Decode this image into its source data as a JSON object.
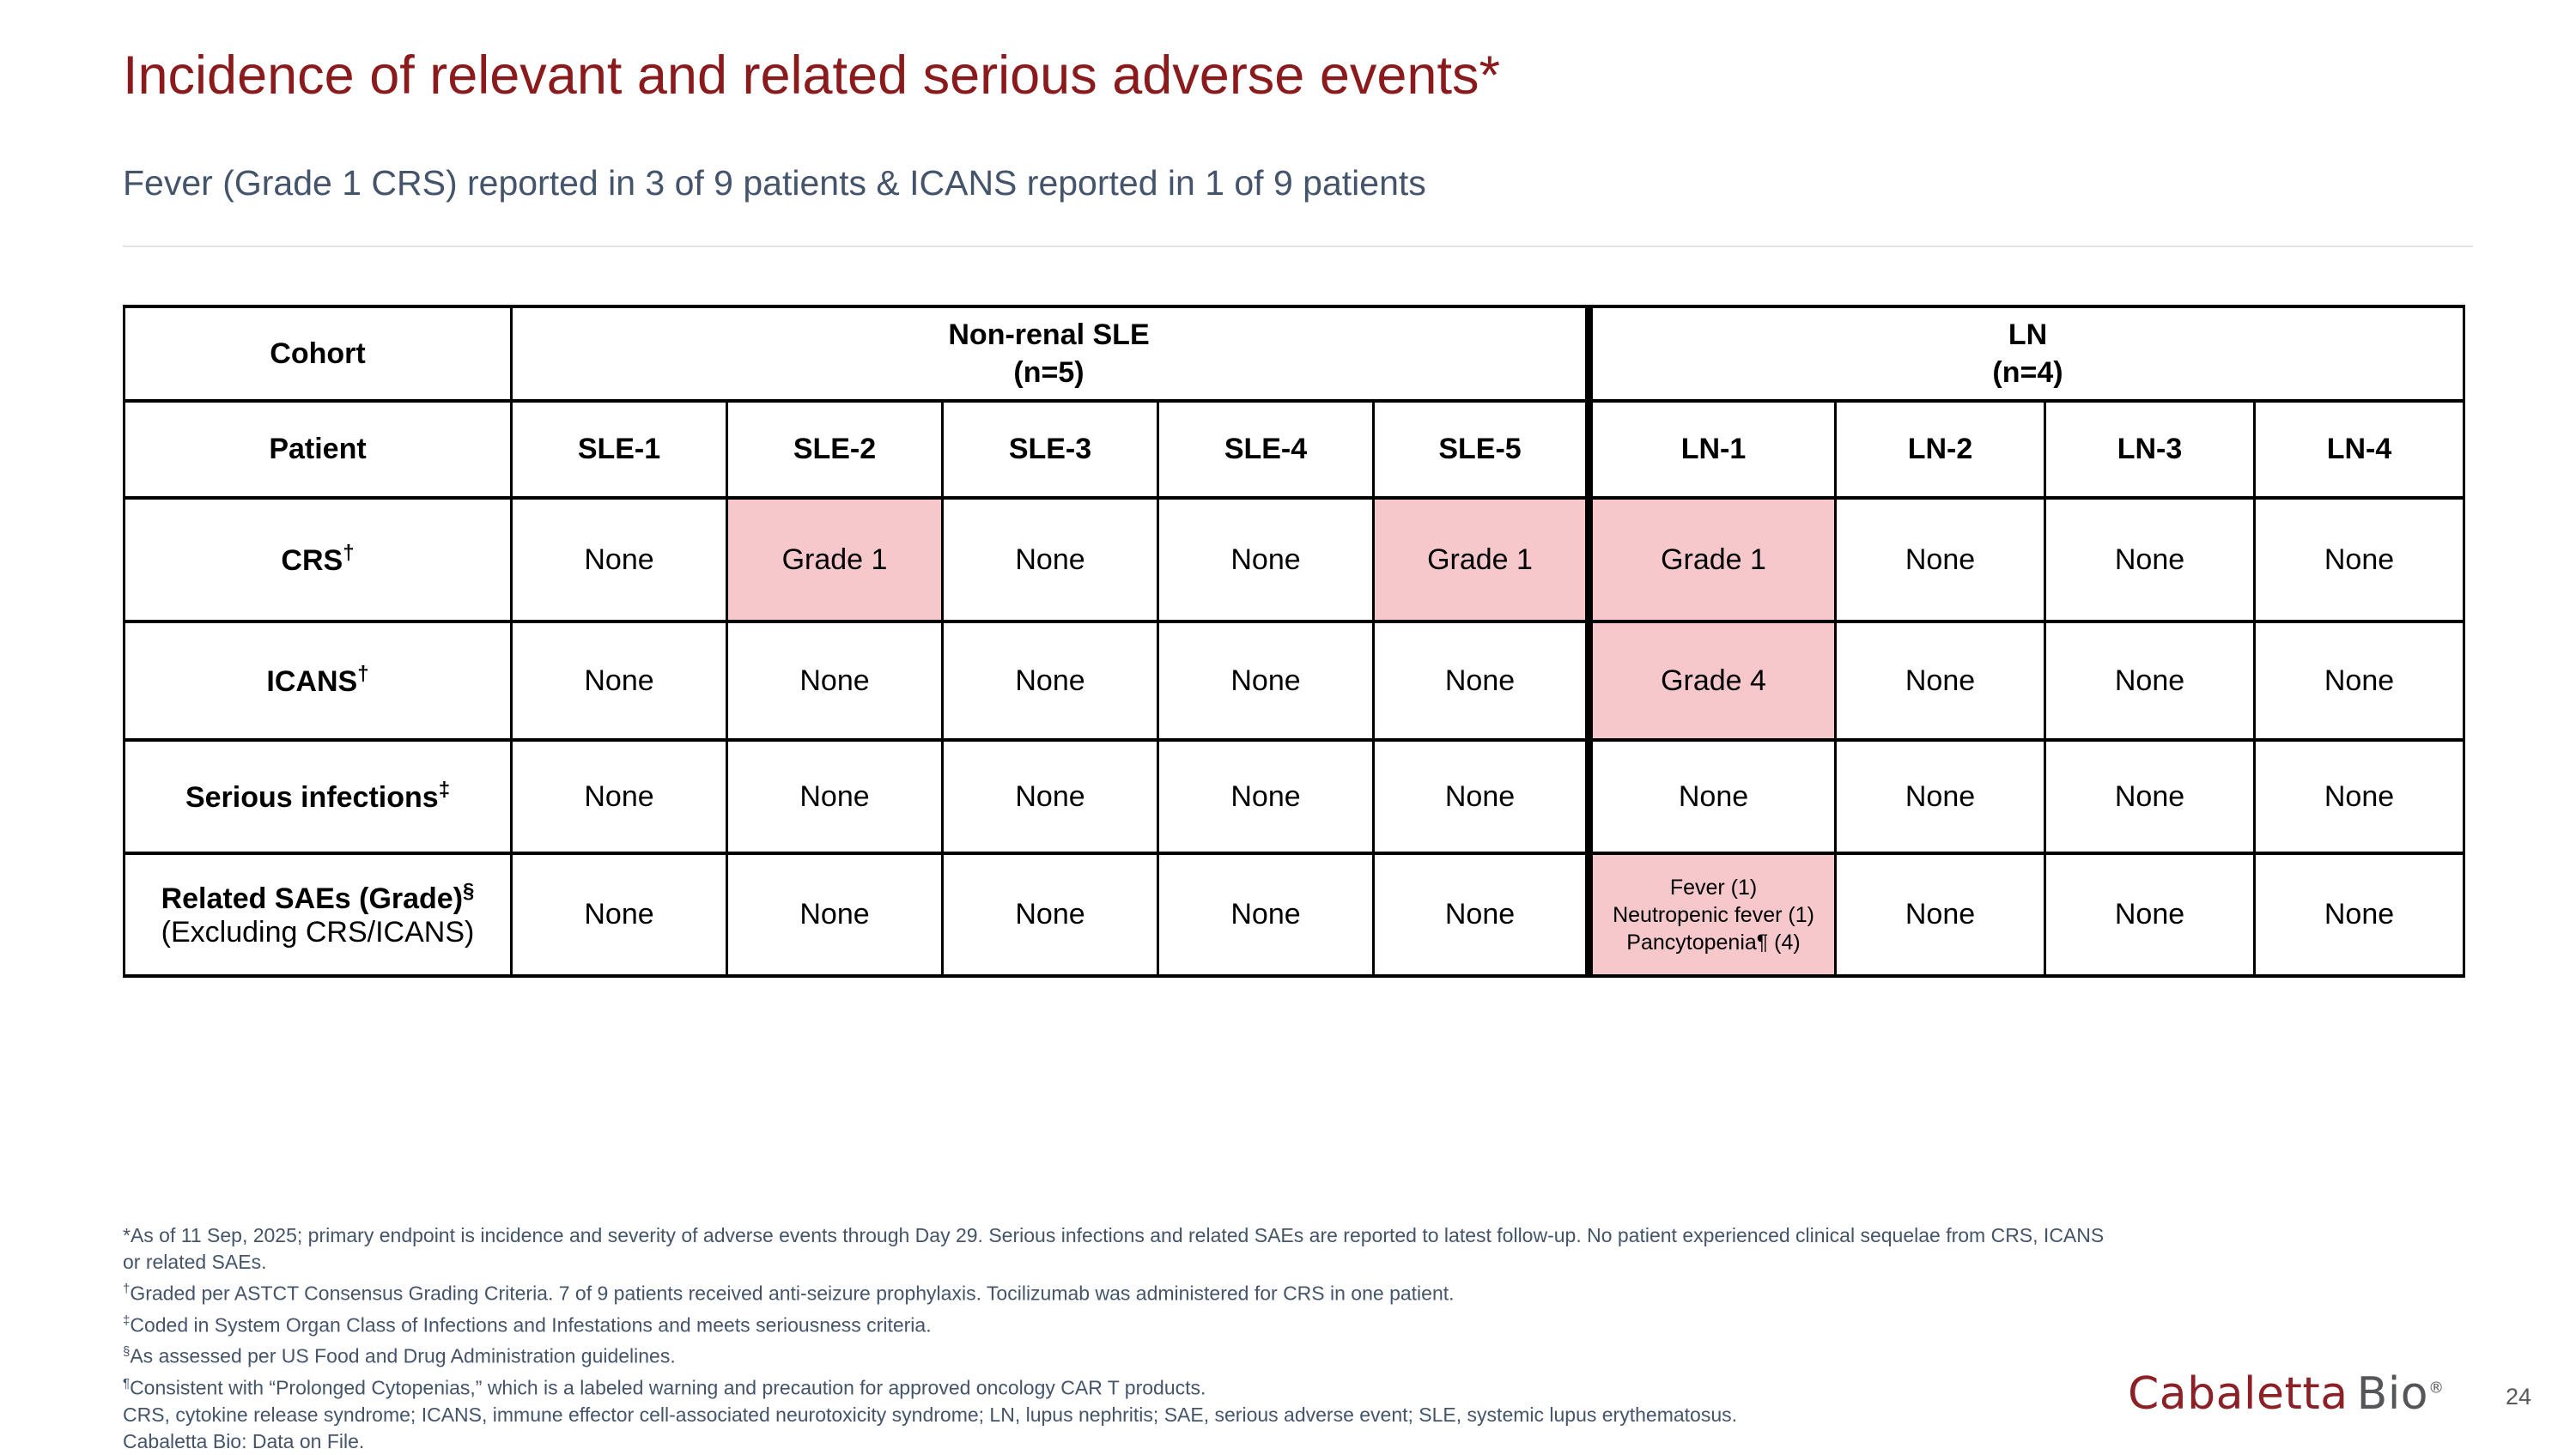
{
  "slide": {
    "title": "Incidence of relevant and related serious adverse events*",
    "subtitle": "Fever (Grade 1 CRS) reported in 3 of 9 patients & ICANS reported in 1 of 9 patients",
    "page_number": "24",
    "logo": {
      "part1": "Cabaletta",
      "part2": "Bio",
      "reg_mark": "®"
    }
  },
  "colors": {
    "title_color": "#8B1A1C",
    "subtitle_color": "#44546A",
    "sle_header_bg": "#7D1416",
    "ln_header_bg": "#E26B6E",
    "sle_text": "#8B1A1C",
    "ln_text": "#E26B6E",
    "highlight_bg": "#F6C7CB",
    "footnote_color": "#44546A",
    "logo_maroon": "#8B2026",
    "logo_gray": "#55565A",
    "page_number_color": "#595959"
  },
  "table": {
    "corner_label": "Cohort",
    "patient_row_label": "Patient",
    "groups": [
      {
        "name": "Non-renal SLE",
        "n_label": "(n=5)",
        "span": 5,
        "cohort": "sle"
      },
      {
        "name": "LN",
        "n_label": "(n=4)",
        "span": 4,
        "cohort": "ln"
      }
    ],
    "patients": [
      {
        "id": "SLE-1",
        "cohort": "sle"
      },
      {
        "id": "SLE-2",
        "cohort": "sle"
      },
      {
        "id": "SLE-3",
        "cohort": "sle"
      },
      {
        "id": "SLE-4",
        "cohort": "sle"
      },
      {
        "id": "SLE-5",
        "cohort": "sle"
      },
      {
        "id": "LN-1",
        "cohort": "ln"
      },
      {
        "id": "LN-2",
        "cohort": "ln"
      },
      {
        "id": "LN-3",
        "cohort": "ln"
      },
      {
        "id": "LN-4",
        "cohort": "ln"
      }
    ],
    "rows": [
      {
        "label": "CRS",
        "marker": "†",
        "sublabel": "",
        "cells": [
          {
            "text": "None"
          },
          {
            "text": "Grade 1",
            "highlight": true
          },
          {
            "text": "None"
          },
          {
            "text": "None"
          },
          {
            "text": "Grade 1",
            "highlight": true
          },
          {
            "text": "Grade 1",
            "highlight": true
          },
          {
            "text": "None"
          },
          {
            "text": "None"
          },
          {
            "text": "None"
          }
        ]
      },
      {
        "label": "ICANS",
        "marker": "†",
        "sublabel": "",
        "cells": [
          {
            "text": "None"
          },
          {
            "text": "None"
          },
          {
            "text": "None"
          },
          {
            "text": "None"
          },
          {
            "text": "None"
          },
          {
            "text": "Grade 4",
            "highlight": true
          },
          {
            "text": "None"
          },
          {
            "text": "None"
          },
          {
            "text": "None"
          }
        ]
      },
      {
        "label": "Serious infections",
        "marker": "‡",
        "sublabel": "",
        "cells": [
          {
            "text": "None"
          },
          {
            "text": "None"
          },
          {
            "text": "None"
          },
          {
            "text": "None"
          },
          {
            "text": "None"
          },
          {
            "text": "None"
          },
          {
            "text": "None"
          },
          {
            "text": "None"
          },
          {
            "text": "None"
          }
        ]
      },
      {
        "label": "Related SAEs (Grade)",
        "marker": "§",
        "sublabel": "(Excluding CRS/ICANS)",
        "cells": [
          {
            "text": "None"
          },
          {
            "text": "None"
          },
          {
            "text": "None"
          },
          {
            "text": "None"
          },
          {
            "text": "None"
          },
          {
            "lines": [
              "Fever (1)",
              "Neutropenic fever (1)",
              "Pancytopenia¶ (4)"
            ],
            "highlight": true,
            "small": true
          },
          {
            "text": "None"
          },
          {
            "text": "None"
          },
          {
            "text": "None"
          }
        ]
      }
    ]
  },
  "footnotes": [
    {
      "marker": "*",
      "sup": false,
      "text": "As of 11 Sep, 2025; primary endpoint is incidence and severity of adverse events through Day 29. Serious infections and related SAEs are reported to latest follow-up. No patient experienced clinical sequelae from CRS, ICANS or related SAEs."
    },
    {
      "marker": "†",
      "sup": true,
      "text": "Graded per ASTCT Consensus Grading Criteria. 7 of 9 patients received anti-seizure prophylaxis. Tocilizumab was administered for CRS in one patient."
    },
    {
      "marker": "‡",
      "sup": true,
      "text": "Coded in System Organ Class of Infections and Infestations and meets seriousness criteria."
    },
    {
      "marker": "§",
      "sup": true,
      "text": "As assessed per US Food and Drug Administration guidelines."
    },
    {
      "marker": "¶",
      "sup": true,
      "text": "Consistent with “Prolonged Cytopenias,” which is a labeled warning and precaution for approved oncology CAR T products."
    },
    {
      "marker": "",
      "sup": false,
      "text": "CRS, cytokine release syndrome; ICANS, immune effector cell-associated neurotoxicity syndrome; LN, lupus nephritis; SAE, serious adverse event; SLE, systemic lupus erythematosus."
    },
    {
      "marker": "",
      "sup": false,
      "text": "Cabaletta Bio: Data on File."
    }
  ]
}
